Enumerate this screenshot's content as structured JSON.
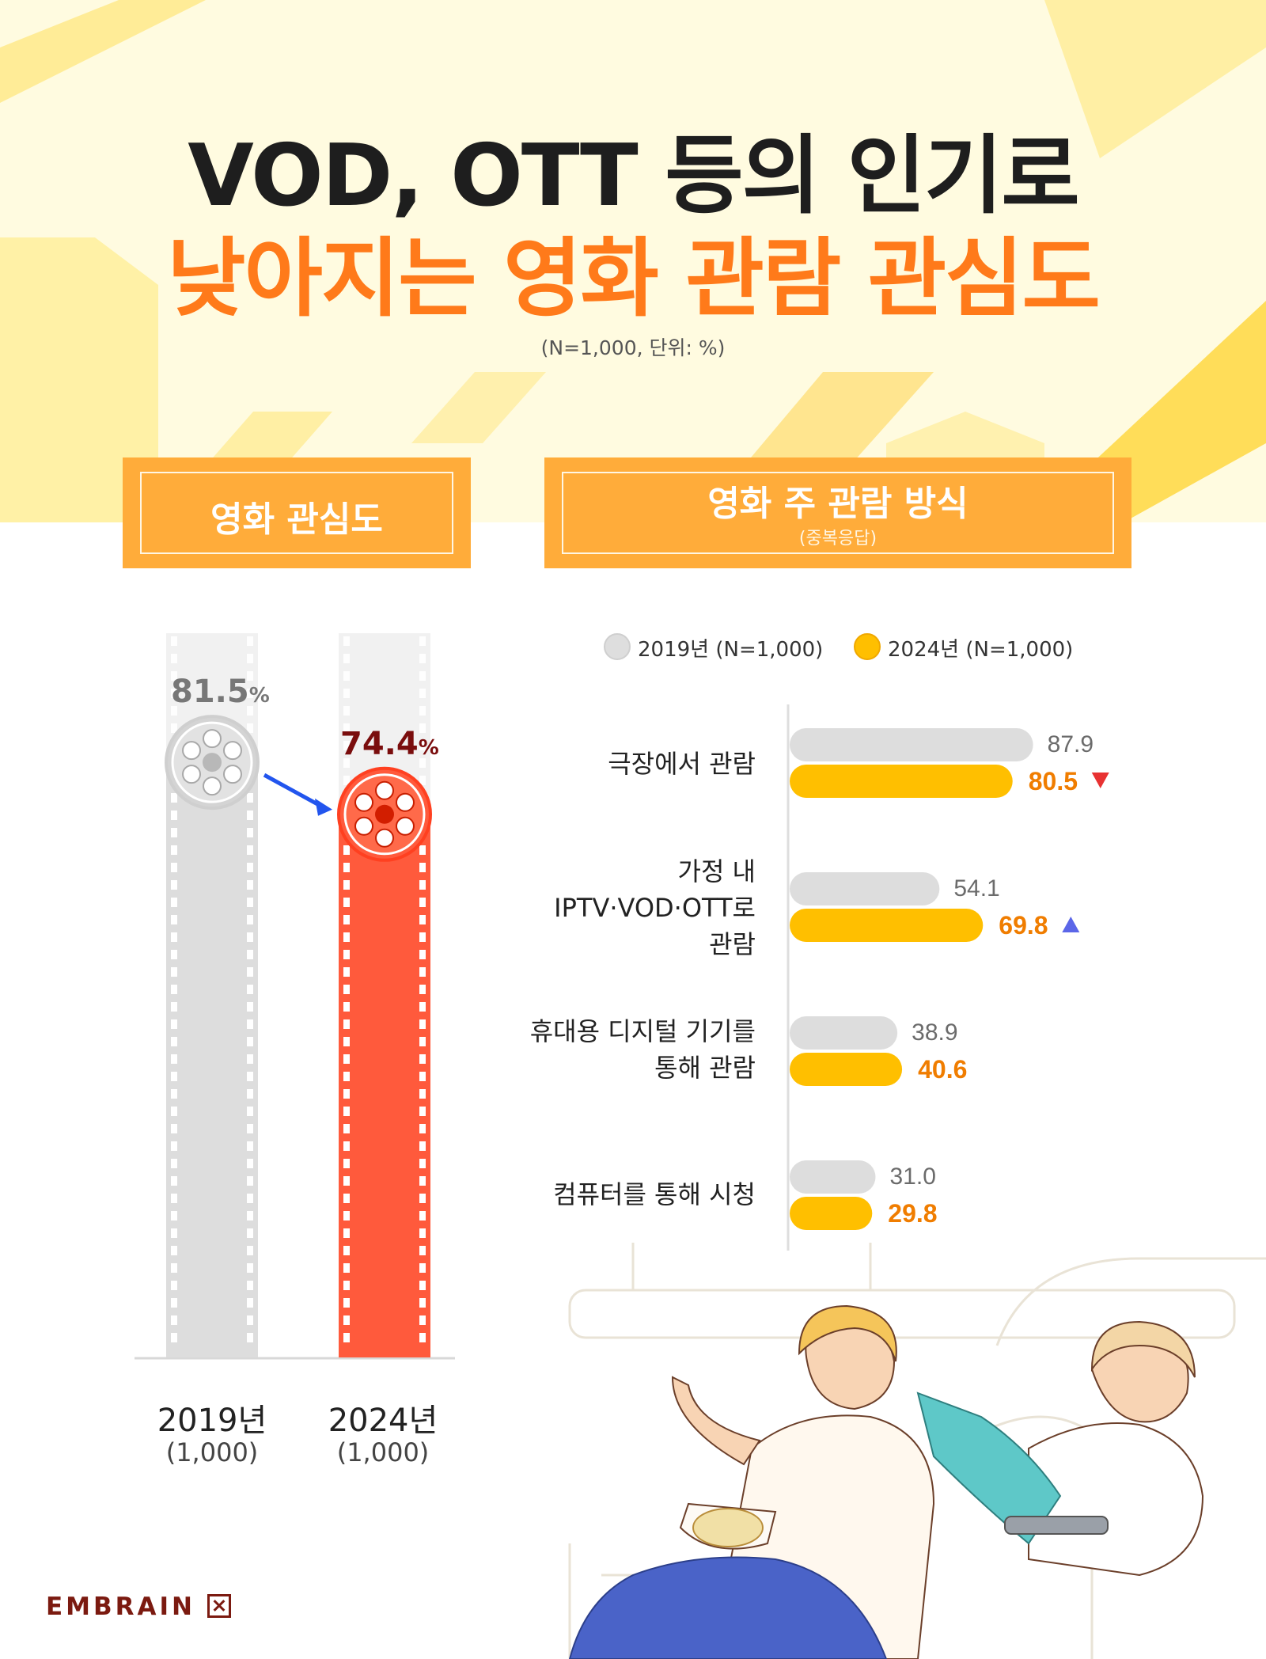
{
  "header": {
    "title_line1": "VOD, OTT 등의 인기로",
    "title_line2": "낮아지는 영화 관람 관심도",
    "note": "(N=1,000, 단위: %)"
  },
  "left_panel": {
    "title": "영화 관심도"
  },
  "right_panel": {
    "title": "영화 주 관람 방식",
    "subtitle": "(중복응답)"
  },
  "legend": {
    "s2019": "2019년 (N=1,000)",
    "s2024": "2024년 (N=1,000)"
  },
  "colors": {
    "accent_orange": "#ff7a1a",
    "ticket": "#ffac3a",
    "bar_2019": "#dddddd",
    "bar_2024": "#ffbf00",
    "film_2024": "#ff5a3c",
    "down_arrow": "#e83232",
    "up_arrow": "#5b66e8",
    "brand": "#7b1a10"
  },
  "brand": {
    "name": "EMBRAIN"
  },
  "chart_data": [
    {
      "type": "bar",
      "title": "영화 관심도",
      "categories": [
        "2019년",
        "2024년"
      ],
      "sample_labels": [
        "(1,000)",
        "(1,000)"
      ],
      "values": [
        81.5,
        74.4
      ],
      "value_labels": [
        "81.5",
        "74.4"
      ],
      "unit": "%"
    },
    {
      "type": "bar",
      "orientation": "horizontal",
      "title": "영화 주 관람 방식",
      "subtitle": "(중복응답)",
      "categories": [
        "극장에서 관람",
        "가정 내 IPTV·VOD·OTT로 관람",
        "휴대용 디지털 기기를 통해 관람",
        "컴퓨터를 통해 시청"
      ],
      "category_lines": [
        [
          "극장에서 관람"
        ],
        [
          "가정 내",
          "IPTV·VOD·OTT로",
          "관람"
        ],
        [
          "휴대용 디지털 기기를",
          "통해 관람"
        ],
        [
          "컴퓨터를 통해 시청"
        ]
      ],
      "series": [
        {
          "name": "2019년 (N=1,000)",
          "values": [
            87.9,
            54.1,
            38.9,
            31.0
          ],
          "labels": [
            "87.9",
            "54.1",
            "38.9",
            "31.0"
          ]
        },
        {
          "name": "2024년 (N=1,000)",
          "values": [
            80.5,
            69.8,
            40.6,
            29.8
          ],
          "labels": [
            "80.5",
            "69.8",
            "40.6",
            "29.8"
          ]
        }
      ],
      "change_markers": [
        "down",
        "up",
        "",
        ""
      ],
      "legend_position": "top"
    }
  ]
}
